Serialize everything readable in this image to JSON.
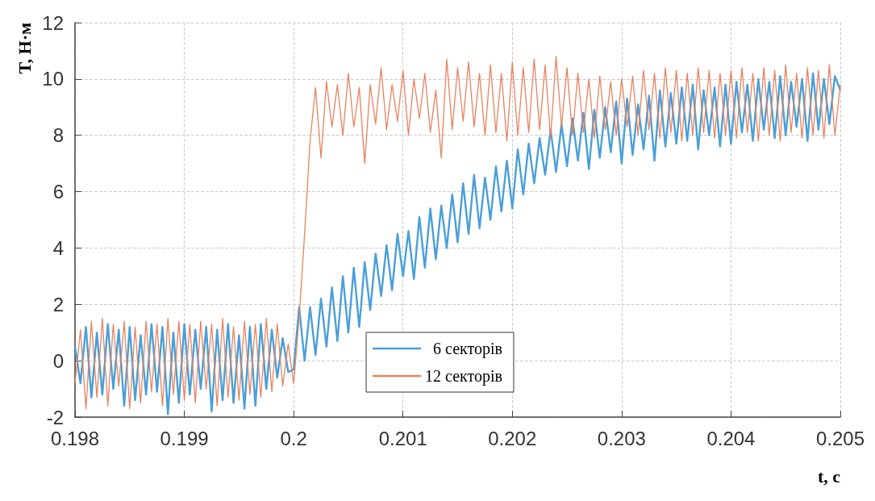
{
  "chart_data": {
    "type": "line",
    "xlabel": "t, с",
    "ylabel": "T, Н·м",
    "x": [
      0.198,
      0.19805,
      0.1981,
      0.19815,
      0.1982,
      0.19825,
      0.1983,
      0.19835,
      0.1984,
      0.19845,
      0.1985,
      0.19855,
      0.1986,
      0.19865,
      0.1987,
      0.19875,
      0.1988,
      0.19885,
      0.1989,
      0.19895,
      0.199,
      0.19905,
      0.1991,
      0.19915,
      0.1992,
      0.19925,
      0.1993,
      0.19935,
      0.1994,
      0.19945,
      0.1995,
      0.19955,
      0.1996,
      0.19965,
      0.1997,
      0.19975,
      0.1998,
      0.19985,
      0.1999,
      0.19995,
      0.2,
      0.20005,
      0.2001,
      0.20015,
      0.2002,
      0.20025,
      0.2003,
      0.20035,
      0.2004,
      0.20045,
      0.2005,
      0.20055,
      0.2006,
      0.20065,
      0.2007,
      0.20075,
      0.2008,
      0.20085,
      0.2009,
      0.20095,
      0.201,
      0.20105,
      0.2011,
      0.20115,
      0.2012,
      0.20125,
      0.2013,
      0.20135,
      0.2014,
      0.20145,
      0.2015,
      0.20155,
      0.2016,
      0.20165,
      0.2017,
      0.20175,
      0.2018,
      0.20185,
      0.2019,
      0.20195,
      0.202,
      0.20205,
      0.2021,
      0.20215,
      0.2022,
      0.20225,
      0.2023,
      0.20235,
      0.2024,
      0.20245,
      0.2025,
      0.20255,
      0.2026,
      0.20265,
      0.2027,
      0.20275,
      0.2028,
      0.20285,
      0.2029,
      0.20295,
      0.203,
      0.20305,
      0.2031,
      0.20315,
      0.2032,
      0.20325,
      0.2033,
      0.20335,
      0.2034,
      0.20345,
      0.2035,
      0.20355,
      0.2036,
      0.20365,
      0.2037,
      0.20375,
      0.2038,
      0.20385,
      0.2039,
      0.20395,
      0.204,
      0.20405,
      0.2041,
      0.20415,
      0.2042,
      0.20425,
      0.2043,
      0.20435,
      0.2044,
      0.20445,
      0.2045,
      0.20455,
      0.2046,
      0.20465,
      0.2047,
      0.20475,
      0.2048,
      0.20485,
      0.2049,
      0.20495,
      0.205
    ],
    "series": [
      {
        "name": "  6 секторів",
        "color": "#4a9fd8",
        "values": [
          0.5,
          -0.8,
          1.2,
          -1.3,
          1.0,
          -1.2,
          1.3,
          -1.0,
          1.1,
          -1.6,
          1.2,
          -1.4,
          0.9,
          -1.2,
          1.3,
          -1.1,
          1.2,
          -1.9,
          1.0,
          -1.5,
          1.3,
          -1.2,
          1.1,
          -1.0,
          1.2,
          -1.8,
          1.1,
          -1.4,
          1.3,
          -1.5,
          0.9,
          -1.7,
          1.2,
          -1.6,
          1.3,
          -1.0,
          1.1,
          -0.6,
          0.8,
          -0.4,
          -0.3,
          1.9,
          0.0,
          1.9,
          0.2,
          2.2,
          0.5,
          2.6,
          0.7,
          3.0,
          1.0,
          3.3,
          1.2,
          3.5,
          1.8,
          3.8,
          2.3,
          4.1,
          2.5,
          4.5,
          3.0,
          4.6,
          2.9,
          5.1,
          3.3,
          5.4,
          3.6,
          5.5,
          4.0,
          5.9,
          4.2,
          6.3,
          4.5,
          6.6,
          4.7,
          6.5,
          5.0,
          6.9,
          5.3,
          7.1,
          5.4,
          7.5,
          5.9,
          7.7,
          6.3,
          7.9,
          6.6,
          8.2,
          6.7,
          8.4,
          6.9,
          8.6,
          7.1,
          8.8,
          6.8,
          8.9,
          7.2,
          9.0,
          7.4,
          9.2,
          7.0,
          9.3,
          7.3,
          9.1,
          7.5,
          9.4,
          7.1,
          9.6,
          7.6,
          9.5,
          7.7,
          9.7,
          7.8,
          9.8,
          7.5,
          9.6,
          8.0,
          9.7,
          7.6,
          9.8,
          7.7,
          9.9,
          8.1,
          9.8,
          7.8,
          10.0,
          8.2,
          9.9,
          7.9,
          10.1,
          8.0,
          9.9,
          8.3,
          10.0,
          7.8,
          10.2,
          8.2,
          10.0,
          8.4,
          10.1,
          9.6
        ]
      },
      {
        "name": "12 секторів",
        "color": "#e8825e",
        "values": [
          -0.8,
          1.1,
          -1.7,
          1.4,
          -1.3,
          1.5,
          -1.6,
          1.3,
          -0.9,
          1.4,
          -1.7,
          1.2,
          -1.5,
          1.4,
          -1.1,
          1.3,
          -1.6,
          1.5,
          -1.2,
          1.4,
          -1.4,
          1.3,
          -1.5,
          1.4,
          -1.0,
          1.3,
          -1.6,
          1.5,
          -1.3,
          1.2,
          -1.4,
          1.4,
          -1.2,
          1.3,
          -1.3,
          1.5,
          -1.1,
          1.3,
          -0.9,
          0.6,
          -0.8,
          1.5,
          4.5,
          7.8,
          9.7,
          7.2,
          9.9,
          8.3,
          9.8,
          8.0,
          10.2,
          8.3,
          9.7,
          7.0,
          9.8,
          8.4,
          10.4,
          8.2,
          9.8,
          8.5,
          10.3,
          8.0,
          10.0,
          8.6,
          10.2,
          8.1,
          9.6,
          7.2,
          10.7,
          8.2,
          10.4,
          8.5,
          10.6,
          8.3,
          10.2,
          8.0,
          10.5,
          8.1,
          10.2,
          7.8,
          10.6,
          8.0,
          10.4,
          8.1,
          10.7,
          8.2,
          10.5,
          7.9,
          10.8,
          8.3,
          10.4,
          8.0,
          10.2,
          8.1,
          10.0,
          7.9,
          10.1,
          8.2,
          9.9,
          8.0,
          10.0,
          8.3,
          10.1,
          8.0,
          10.3,
          8.2,
          10.2,
          7.9,
          10.4,
          8.1,
          10.3,
          7.8,
          10.2,
          8.0,
          10.4,
          8.1,
          10.3,
          7.9,
          10.2,
          8.0,
          10.3,
          7.9,
          10.4,
          8.1,
          10.2,
          7.8,
          10.4,
          8.0,
          10.3,
          7.8,
          10.5,
          8.1,
          10.2,
          7.9,
          10.4,
          8.0,
          10.3,
          7.9,
          10.5,
          8.0,
          9.8
        ]
      }
    ],
    "xlim": [
      0.198,
      0.205
    ],
    "xticks": [
      0.198,
      0.199,
      0.2,
      0.201,
      0.202,
      0.203,
      0.204,
      0.205
    ],
    "ylim": [
      -2,
      12
    ],
    "yticks": [
      -2,
      0,
      2,
      4,
      6,
      8,
      10,
      12
    ],
    "grid": true,
    "legend": "bottom",
    "line_style": "solid",
    "marker": "none"
  }
}
